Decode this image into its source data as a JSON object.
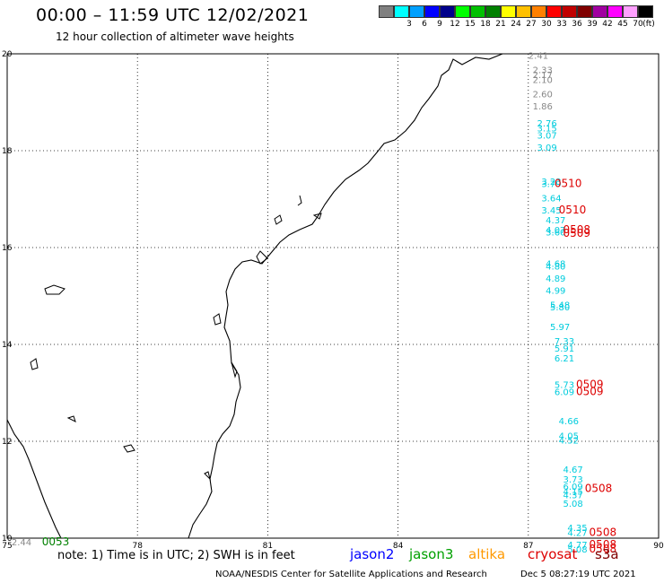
{
  "header": {
    "title": "00:00 – 11:59 UTC 12/02/2021",
    "subtitle": "12 hour collection of altimeter wave heights"
  },
  "colorbar": {
    "colors": [
      "#808080",
      "#00ffff",
      "#00a0ff",
      "#0000ff",
      "#00008b",
      "#00ff00",
      "#00c000",
      "#008000",
      "#ffff00",
      "#ffc000",
      "#ff8000",
      "#ff0000",
      "#c00000",
      "#800000",
      "#a000a0",
      "#ff00ff",
      "#ffa0ff",
      "#000000"
    ],
    "tick_labels": [
      "3",
      "6",
      "9",
      "12",
      "15",
      "18",
      "21",
      "24",
      "27",
      "30",
      "33",
      "36",
      "39",
      "42",
      "45",
      "70"
    ],
    "unit": "(ft)"
  },
  "axes": {
    "lon_labels": [
      "75",
      "78",
      "81",
      "84",
      "87",
      "90"
    ],
    "lat_labels": [
      "20",
      "18",
      "16",
      "14",
      "12",
      "10"
    ]
  },
  "observations": [
    {
      "lon": 87.0,
      "lat": 19.9,
      "value": "2.41",
      "color": "#888888"
    },
    {
      "lon": 87.1,
      "lat": 19.6,
      "value": "2.33",
      "color": "#888888"
    },
    {
      "lon": 87.1,
      "lat": 19.5,
      "value": "2.17",
      "color": "#888888"
    },
    {
      "lon": 87.1,
      "lat": 19.4,
      "value": "2.10",
      "color": "#888888"
    },
    {
      "lon": 87.1,
      "lat": 19.1,
      "value": "2.60",
      "color": "#888888"
    },
    {
      "lon": 87.1,
      "lat": 18.85,
      "value": "1.86",
      "color": "#888888"
    },
    {
      "lon": 87.2,
      "lat": 18.5,
      "value": "2.76",
      "color": "#00ccdd"
    },
    {
      "lon": 87.2,
      "lat": 18.4,
      "value": "3.15",
      "color": "#00ccdd"
    },
    {
      "lon": 87.2,
      "lat": 18.25,
      "value": "3.07",
      "color": "#00ccdd"
    },
    {
      "lon": 87.2,
      "lat": 18.0,
      "value": "3.09",
      "color": "#00ccdd"
    },
    {
      "lon": 87.3,
      "lat": 17.3,
      "value": "3.23",
      "color": "#00ccdd"
    },
    {
      "lon": 87.3,
      "lat": 17.25,
      "value": "3.79",
      "color": "#00ccdd"
    },
    {
      "lon": 87.3,
      "lat": 16.95,
      "value": "3.64",
      "color": "#00ccdd"
    },
    {
      "lon": 87.3,
      "lat": 16.7,
      "value": "3.45",
      "color": "#00ccdd"
    },
    {
      "lon": 87.4,
      "lat": 16.5,
      "value": "4.37",
      "color": "#00ccdd"
    },
    {
      "lon": 87.4,
      "lat": 16.3,
      "value": "4.07",
      "color": "#00ccdd"
    },
    {
      "lon": 87.4,
      "lat": 16.25,
      "value": "3.60",
      "color": "#00ccdd"
    },
    {
      "lon": 87.4,
      "lat": 15.6,
      "value": "4.68",
      "color": "#00ccdd"
    },
    {
      "lon": 87.4,
      "lat": 15.55,
      "value": "4.80",
      "color": "#00ccdd"
    },
    {
      "lon": 87.4,
      "lat": 15.3,
      "value": "4.89",
      "color": "#00ccdd"
    },
    {
      "lon": 87.4,
      "lat": 15.05,
      "value": "4.99",
      "color": "#00ccdd"
    },
    {
      "lon": 87.5,
      "lat": 14.75,
      "value": "5.48",
      "color": "#00ccdd"
    },
    {
      "lon": 87.5,
      "lat": 14.7,
      "value": "5.80",
      "color": "#00ccdd"
    },
    {
      "lon": 87.5,
      "lat": 14.3,
      "value": "5.97",
      "color": "#00ccdd"
    },
    {
      "lon": 87.6,
      "lat": 14.0,
      "value": "7.33",
      "color": "#00ccdd"
    },
    {
      "lon": 87.6,
      "lat": 13.85,
      "value": "5.91",
      "color": "#00ccdd"
    },
    {
      "lon": 87.6,
      "lat": 13.65,
      "value": "6.21",
      "color": "#00ccdd"
    },
    {
      "lon": 87.6,
      "lat": 13.1,
      "value": "5.73",
      "color": "#00ccdd"
    },
    {
      "lon": 87.6,
      "lat": 12.95,
      "value": "6.09",
      "color": "#00ccdd"
    },
    {
      "lon": 87.7,
      "lat": 12.35,
      "value": "4.66",
      "color": "#00ccdd"
    },
    {
      "lon": 87.7,
      "lat": 12.05,
      "value": "4.05",
      "color": "#00ccdd"
    },
    {
      "lon": 87.7,
      "lat": 11.95,
      "value": "4.52",
      "color": "#00ccdd"
    },
    {
      "lon": 87.8,
      "lat": 11.35,
      "value": "4.67",
      "color": "#00ccdd"
    },
    {
      "lon": 87.8,
      "lat": 11.15,
      "value": "3.73",
      "color": "#00ccdd"
    },
    {
      "lon": 87.8,
      "lat": 11.0,
      "value": "6.09",
      "color": "#00ccdd"
    },
    {
      "lon": 87.8,
      "lat": 10.9,
      "value": "4.15",
      "color": "#00ccdd"
    },
    {
      "lon": 87.8,
      "lat": 10.82,
      "value": "4.37",
      "color": "#00ccdd"
    },
    {
      "lon": 87.8,
      "lat": 10.65,
      "value": "5.08",
      "color": "#00ccdd"
    },
    {
      "lon": 87.9,
      "lat": 10.15,
      "value": "4.35",
      "color": "#00ccdd"
    },
    {
      "lon": 87.9,
      "lat": 10.05,
      "value": "4.27",
      "color": "#00ccdd"
    },
    {
      "lon": 87.9,
      "lat": 9.8,
      "value": "4.77",
      "color": "#00ccdd"
    },
    {
      "lon": 87.9,
      "lat": 9.7,
      "value": "5.08",
      "color": "#00ccdd"
    },
    {
      "lon": 75.1,
      "lat": 9.85,
      "value": "2.44",
      "color": "#888888"
    }
  ],
  "passes": [
    {
      "lon": 87.6,
      "lat": 17.25,
      "label": "0510",
      "color": "#dd0000"
    },
    {
      "lon": 87.7,
      "lat": 16.7,
      "label": "0510",
      "color": "#dd0000"
    },
    {
      "lon": 87.8,
      "lat": 16.3,
      "label": "0508",
      "color": "#dd0000"
    },
    {
      "lon": 87.8,
      "lat": 16.22,
      "label": "0509",
      "color": "#dd0000"
    },
    {
      "lon": 88.1,
      "lat": 13.1,
      "label": "0509",
      "color": "#dd0000"
    },
    {
      "lon": 88.1,
      "lat": 12.95,
      "label": "0509",
      "color": "#dd0000"
    },
    {
      "lon": 88.3,
      "lat": 10.95,
      "label": "0508",
      "color": "#dd0000"
    },
    {
      "lon": 88.4,
      "lat": 10.05,
      "label": "0508",
      "color": "#dd0000"
    },
    {
      "lon": 88.4,
      "lat": 9.8,
      "label": "0508",
      "color": "#dd0000"
    },
    {
      "lon": 88.4,
      "lat": 9.7,
      "label": "0508",
      "color": "#dd0000"
    },
    {
      "lon": 75.8,
      "lat": 9.85,
      "label": "0053",
      "color": "#008000"
    }
  ],
  "footer": {
    "note": "note: 1) Time is in UTC; 2) SWH is in feet",
    "satellites": [
      {
        "name": "jason2",
        "color": "#0000ff"
      },
      {
        "name": "jason3",
        "color": "#00a000"
      },
      {
        "name": "altika",
        "color": "#ff9900"
      },
      {
        "name": "cryosat",
        "color": "#dd0000"
      },
      {
        "name": "s3a",
        "color": "#800000"
      }
    ],
    "credit": "NOAA/NESDIS Center for Satellite Applications and Research",
    "timestamp": "Dec  5 08:27:19 UTC 2021"
  }
}
